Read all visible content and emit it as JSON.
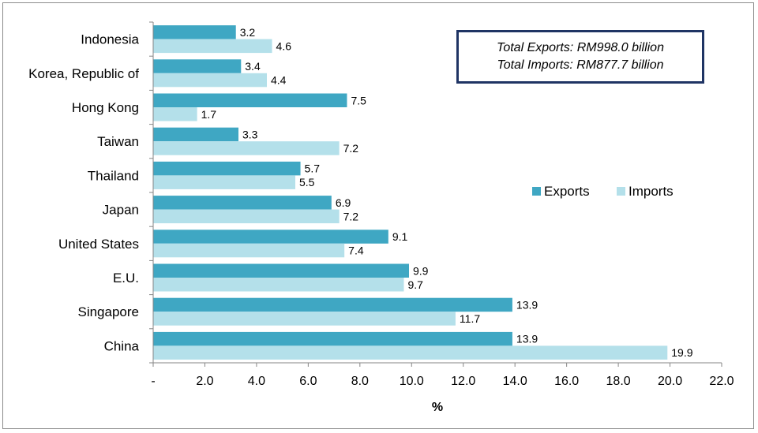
{
  "chart_data": {
    "type": "bar",
    "orientation": "horizontal",
    "categories": [
      "Indonesia",
      "Korea, Republic of",
      "Hong Kong",
      "Taiwan",
      "Thailand",
      "Japan",
      "United States",
      "E.U.",
      "Singapore",
      "China"
    ],
    "series": [
      {
        "name": "Exports",
        "color": "#3fa7c3",
        "values": [
          3.2,
          3.4,
          7.5,
          3.3,
          5.7,
          6.9,
          9.1,
          9.9,
          13.9,
          13.9
        ]
      },
      {
        "name": "Imports",
        "color": "#b4e0ea",
        "values": [
          4.6,
          4.4,
          1.7,
          7.2,
          5.5,
          7.2,
          7.4,
          9.7,
          11.7,
          19.9
        ]
      }
    ],
    "data_labels": {
      "Exports": [
        "3.2",
        "3.4",
        "7.5",
        "3.3",
        "5.7",
        "6.9",
        "9.1",
        "9.9",
        "13.9",
        "13.9"
      ],
      "Imports": [
        "4.6",
        "4.4",
        "1.7",
        "7.2",
        "5.5",
        "7.2",
        "7.4",
        "9.7",
        "11.7",
        "19.9"
      ]
    },
    "xlabel": "%",
    "ylabel": "",
    "xlim": [
      0,
      22
    ],
    "xticks": [
      0,
      2,
      4,
      6,
      8,
      10,
      12,
      14,
      16,
      18,
      20,
      22
    ],
    "xtick_labels": [
      "-",
      "2.0",
      "4.0",
      "6.0",
      "8.0",
      "10.0",
      "12.0",
      "14.0",
      "16.0",
      "18.0",
      "20.0",
      "22.0"
    ],
    "grid": false,
    "legend": {
      "position": "center-right",
      "entries": [
        "Exports",
        "Imports"
      ]
    },
    "annotations": {
      "line1": "Total Exports: RM998.0 billion",
      "line2": "Total Imports: RM877.7 billion"
    }
  }
}
